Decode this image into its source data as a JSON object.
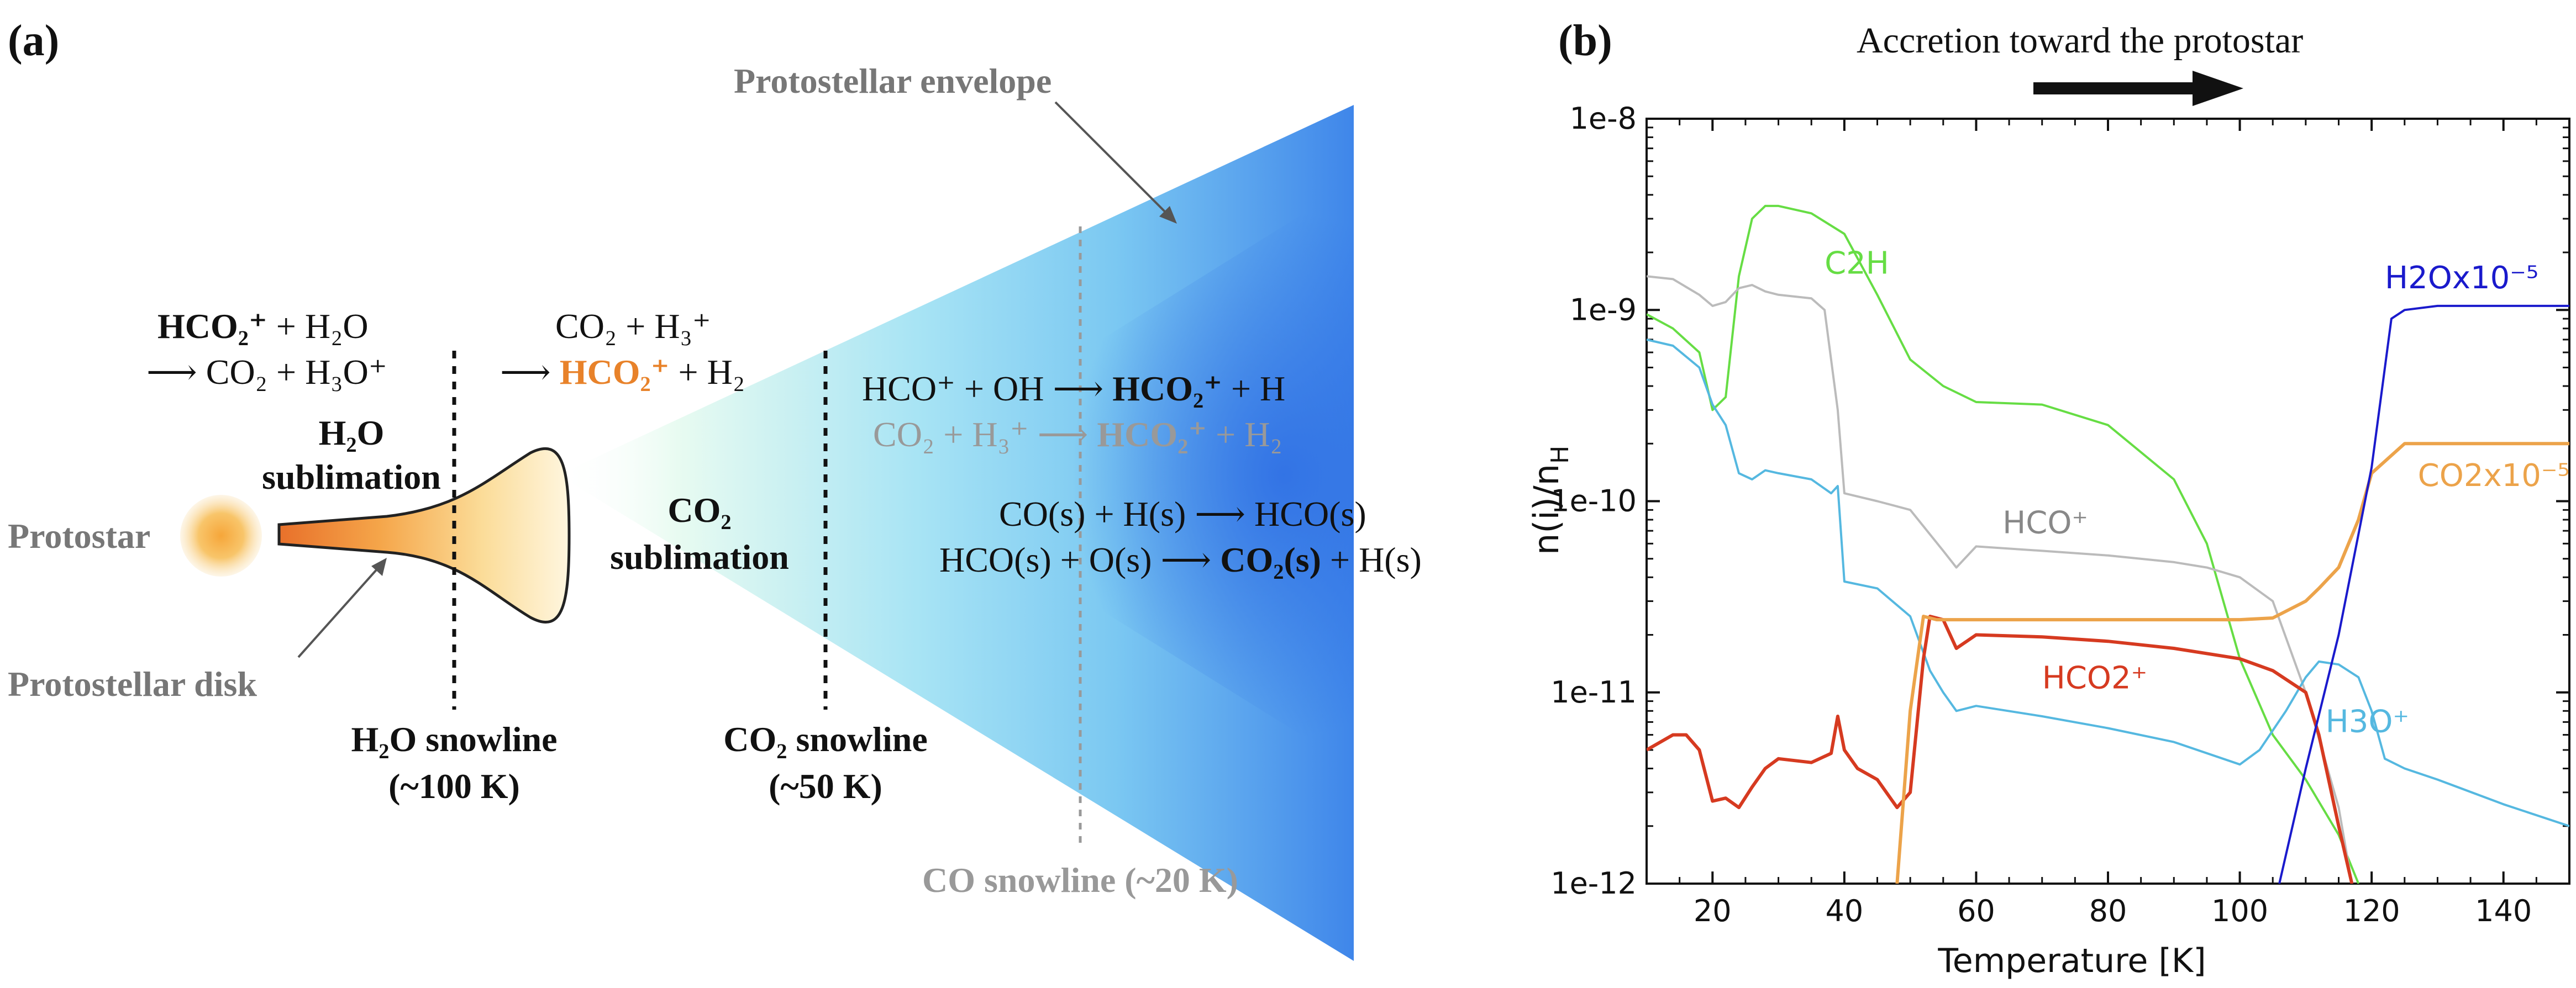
{
  "panel_a": {
    "label": "(a)",
    "protostar": "Protostar",
    "disk": "Protostellar disk",
    "envelope": "Protostellar envelope",
    "h2o_sub_1": "H₂O",
    "h2o_sub_2": "sublimation",
    "co2_sub_1": "CO₂",
    "co2_sub_2": "sublimation",
    "h2o_snow_1": "H₂O snowline",
    "h2o_snow_2": "(~100 K)",
    "co2_snow_1": "CO₂ snowline",
    "co2_snow_2": "(~50 K)",
    "co_snow": "CO snowline (~20 K)",
    "r1a_bold": "HCO₂⁺",
    "r1a_rest": " + H₂O",
    "r1b": "⟶ CO₂ + H₃O⁺",
    "r2a": "CO₂ + H₃⁺",
    "r2b_pre": "⟶ ",
    "r2b_bold": "HCO₂⁺",
    "r2b_post": " + H₂",
    "r3_pre": "HCO⁺ + OH ⟶ ",
    "r3_bold": "HCO₂⁺",
    "r3_post": " + H",
    "r4_pre": "CO₂ + H₃⁺ ⟶ ",
    "r4_bold": "HCO₂⁺",
    "r4_post": " + H₂",
    "r5": "CO(s) + H(s) ⟶ HCO(s)",
    "r6_pre": "HCO(s) + O(s) ⟶ ",
    "r6_bold": "CO₂(s)",
    "r6_post": " + H(s)"
  },
  "panel_b": {
    "label": "(b)",
    "arrow_text": "Accretion toward the protostar",
    "ylabel_main": "n(i)/n",
    "ylabel_sub": "H",
    "xlabel": "Temperature [K]",
    "xticks": [
      "20",
      "40",
      "60",
      "80",
      "100",
      "120",
      "140"
    ],
    "yticks": [
      "1e-8",
      "1e-9",
      "1e-10",
      "1e-11",
      "1e-12"
    ],
    "series_labels": {
      "c2h": "C2H",
      "h2o": "H2Ox10⁻⁵",
      "hco": "HCO⁺",
      "co2": "CO2x10⁻⁵",
      "hco2": "HCO2⁺",
      "h3o": "H3O⁺"
    }
  },
  "colors": {
    "c2h": "#66dd44",
    "hco": "#bbbbbb",
    "h3o": "#55b8e0",
    "hco2": "#d63a20",
    "co2": "#eca34a",
    "h2o": "#1a1acc",
    "orange_text": "#e8822a",
    "grey_text": "#777777"
  },
  "chart_data": {
    "type": "line",
    "xlabel": "Temperature [K]",
    "ylabel": "n(i)/n_H",
    "xlim": [
      10,
      150
    ],
    "ylim": [
      1e-12,
      1e-08
    ],
    "yscale": "log",
    "series": [
      {
        "name": "C2H",
        "x": [
          10,
          14,
          18,
          20,
          22,
          24,
          26,
          28,
          30,
          35,
          40,
          45,
          50,
          55,
          60,
          70,
          80,
          90,
          95,
          100,
          105,
          110,
          115,
          118
        ],
        "y": [
          9.5e-10,
          8e-10,
          6e-10,
          3e-10,
          3.5e-10,
          1.5e-09,
          3e-09,
          3.5e-09,
          3.5e-09,
          3.2e-09,
          2.5e-09,
          1.2e-09,
          5.5e-10,
          4e-10,
          3.3e-10,
          3.2e-10,
          2.5e-10,
          1.3e-10,
          6e-11,
          1.5e-11,
          6e-12,
          3.5e-12,
          1.8e-12,
          1e-12
        ]
      },
      {
        "name": "HCO+",
        "x": [
          10,
          14,
          18,
          20,
          22,
          24,
          26,
          28,
          30,
          35,
          37,
          39,
          40,
          45,
          50,
          55,
          57,
          60,
          70,
          80,
          90,
          95,
          100,
          105,
          110,
          115,
          117
        ],
        "y": [
          1.5e-09,
          1.45e-09,
          1.2e-09,
          1.05e-09,
          1.1e-09,
          1.3e-09,
          1.35e-09,
          1.25e-09,
          1.2e-09,
          1.15e-09,
          1e-09,
          3e-10,
          1.1e-10,
          1e-10,
          9e-11,
          5.5e-11,
          4.5e-11,
          5.8e-11,
          5.5e-11,
          5.2e-11,
          4.8e-11,
          4.5e-11,
          4e-11,
          3e-11,
          1e-11,
          2.5e-12,
          1e-12
        ]
      },
      {
        "name": "H3O+",
        "x": [
          10,
          14,
          18,
          20,
          22,
          24,
          26,
          28,
          30,
          35,
          38,
          39,
          40,
          45,
          50,
          53,
          55,
          57,
          60,
          70,
          80,
          90,
          100,
          103,
          107,
          110,
          112,
          115,
          118,
          120,
          122,
          125,
          130,
          140,
          150
        ],
        "y": [
          7e-10,
          6.5e-10,
          5e-10,
          3.2e-10,
          2.5e-10,
          1.4e-10,
          1.3e-10,
          1.45e-10,
          1.4e-10,
          1.3e-10,
          1.1e-10,
          1.2e-10,
          3.8e-11,
          3.5e-11,
          2.5e-11,
          1.3e-11,
          1e-11,
          8e-12,
          8.5e-12,
          7.5e-12,
          6.5e-12,
          5.5e-12,
          4.2e-12,
          5e-12,
          8e-12,
          1.2e-11,
          1.45e-11,
          1.4e-11,
          1.2e-11,
          8e-12,
          4.5e-12,
          4e-12,
          3.5e-12,
          2.6e-12,
          2e-12
        ]
      },
      {
        "name": "HCO2+",
        "x": [
          10,
          14,
          16,
          18,
          20,
          22,
          24,
          26,
          28,
          30,
          35,
          38,
          39,
          40,
          42,
          45,
          48,
          50,
          52,
          53,
          55,
          57,
          60,
          70,
          80,
          90,
          100,
          105,
          110,
          112,
          115,
          117
        ],
        "y": [
          5e-12,
          6e-12,
          6e-12,
          5e-12,
          2.7e-12,
          2.8e-12,
          2.5e-12,
          3.2e-12,
          4e-12,
          4.5e-12,
          4.3e-12,
          4.8e-12,
          7.5e-12,
          5e-12,
          4e-12,
          3.5e-12,
          2.5e-12,
          3e-12,
          1.5e-11,
          2.5e-11,
          2.4e-11,
          1.7e-11,
          2e-11,
          1.95e-11,
          1.85e-11,
          1.7e-11,
          1.5e-11,
          1.3e-11,
          1e-11,
          6e-12,
          2e-12,
          1e-12
        ]
      },
      {
        "name": "CO2x10^-5",
        "x": [
          48,
          50,
          52,
          54,
          55,
          60,
          70,
          80,
          90,
          100,
          105,
          110,
          112,
          115,
          118,
          120,
          125,
          150
        ],
        "y": [
          1e-12,
          8e-12,
          2.5e-11,
          2.4e-11,
          2.4e-11,
          2.4e-11,
          2.4e-11,
          2.4e-11,
          2.4e-11,
          2.4e-11,
          2.45e-11,
          3e-11,
          3.5e-11,
          4.5e-11,
          8e-11,
          1.4e-10,
          2e-10,
          2e-10
        ]
      },
      {
        "name": "H2Ox10^-5",
        "x": [
          106,
          110,
          115,
          120,
          123,
          125,
          130,
          150
        ],
        "y": [
          1e-12,
          4e-12,
          2e-11,
          1.5e-10,
          9e-10,
          1e-09,
          1.05e-09,
          1.05e-09
        ]
      }
    ]
  }
}
